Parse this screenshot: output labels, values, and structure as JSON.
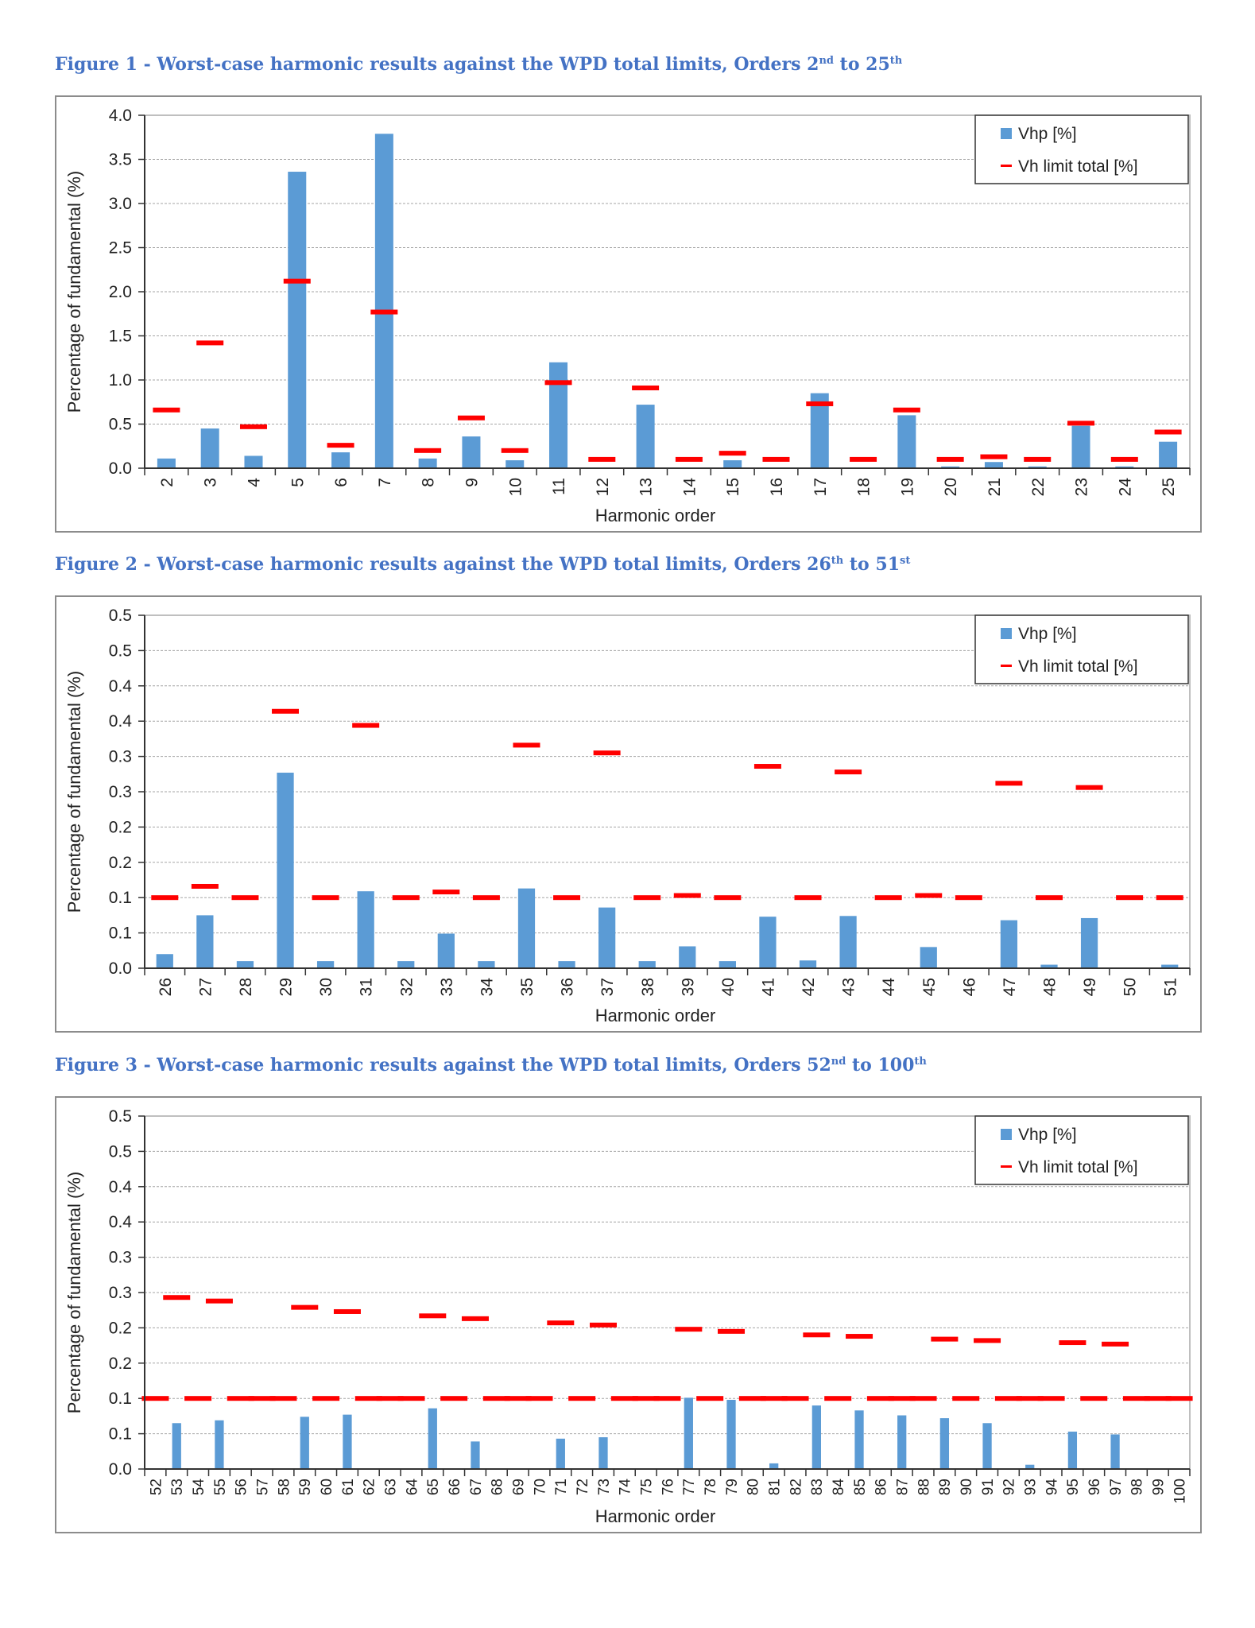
{
  "figures": [
    {
      "caption": {
        "text": "Figure 1 - Worst-case harmonic results against the WPD total limits, Orders 2",
        "sup1": "nd",
        "mid": " to 25",
        "sup2": "th"
      }
    },
    {
      "caption": {
        "text": "Figure 2 - Worst-case harmonic results against the WPD total limits, Orders 26",
        "sup1": "th",
        "mid": " to 51",
        "sup2": "st"
      }
    },
    {
      "caption": {
        "text": "Figure 3 - Worst-case harmonic results against the WPD total limits, Orders 52",
        "sup1": "nd",
        "mid": " to 100",
        "sup2": "th"
      }
    }
  ],
  "colors": {
    "bar": "#5b9bd5",
    "limit": "#ff0000",
    "caption": "#4472c4"
  },
  "chart_data": [
    {
      "type": "bar",
      "xlabel": "Harmonic order",
      "ylabel": "Percentage of fundamental (%)",
      "ylim": [
        0,
        4.0
      ],
      "yticks": [
        0,
        0.5,
        1.0,
        1.5,
        2.0,
        2.5,
        3.0,
        3.5,
        4.0
      ],
      "ytick_labels": [
        "0.0",
        "0.5",
        "1.0",
        "1.5",
        "2.0",
        "2.5",
        "3.0",
        "3.5",
        "4.0"
      ],
      "grid": true,
      "legend": "top-right",
      "categories": [
        "2",
        "3",
        "4",
        "5",
        "6",
        "7",
        "8",
        "9",
        "10",
        "11",
        "12",
        "13",
        "14",
        "15",
        "16",
        "17",
        "18",
        "19",
        "20",
        "21",
        "22",
        "23",
        "24",
        "25"
      ],
      "series": [
        {
          "name": "Vhp [%]",
          "kind": "bar",
          "values": [
            0.11,
            0.45,
            0.14,
            3.36,
            0.18,
            3.79,
            0.11,
            0.36,
            0.09,
            1.2,
            0,
            0.72,
            0,
            0.09,
            0,
            0.85,
            0,
            0.6,
            0.02,
            0.07,
            0.02,
            0.48,
            0.02,
            0.3
          ]
        },
        {
          "name": "Vh limit total [%]",
          "kind": "marker",
          "values": [
            0.66,
            1.42,
            0.47,
            2.12,
            0.26,
            1.77,
            0.2,
            0.57,
            0.2,
            0.97,
            0.1,
            0.91,
            0.1,
            0.17,
            0.1,
            0.73,
            0.1,
            0.66,
            0.1,
            0.13,
            0.1,
            0.51,
            0.1,
            0.41
          ]
        }
      ]
    },
    {
      "type": "bar",
      "xlabel": "Harmonic order",
      "ylabel": "Percentage of fundamental (%)",
      "ylim": [
        0,
        0.5
      ],
      "yticks": [
        0,
        0.05,
        0.1,
        0.15,
        0.2,
        0.25,
        0.3,
        0.35,
        0.4,
        0.45,
        0.5
      ],
      "ytick_labels": [
        "0.0",
        "0.1",
        "0.1",
        "0.2",
        "0.2",
        "0.3",
        "0.3",
        "0.4",
        "0.4",
        "0.5",
        "0.5"
      ],
      "grid": true,
      "legend": "top-right",
      "categories": [
        "26",
        "27",
        "28",
        "29",
        "30",
        "31",
        "32",
        "33",
        "34",
        "35",
        "36",
        "37",
        "38",
        "39",
        "40",
        "41",
        "42",
        "43",
        "44",
        "45",
        "46",
        "47",
        "48",
        "49",
        "50",
        "51"
      ],
      "series": [
        {
          "name": "Vhp [%]",
          "kind": "bar",
          "values": [
            0.02,
            0.075,
            0.01,
            0.277,
            0.01,
            0.109,
            0.01,
            0.049,
            0.01,
            0.113,
            0.01,
            0.086,
            0.01,
            0.031,
            0.01,
            0.073,
            0.011,
            0.074,
            0,
            0.03,
            0,
            0.068,
            0.005,
            0.071,
            0,
            0.005
          ]
        },
        {
          "name": "Vh limit total [%]",
          "kind": "marker",
          "values": [
            0.1,
            0.116,
            0.1,
            0.364,
            0.1,
            0.344,
            0.1,
            0.108,
            0.1,
            0.316,
            0.1,
            0.305,
            0.1,
            0.103,
            0.1,
            0.286,
            0.1,
            0.278,
            0.1,
            0.103,
            0.1,
            0.262,
            0.1,
            0.256,
            0.1,
            0.1
          ]
        }
      ]
    },
    {
      "type": "bar",
      "xlabel": "Harmonic order",
      "ylabel": "Percentage of fundamental (%)",
      "ylim": [
        0,
        0.5
      ],
      "yticks": [
        0,
        0.05,
        0.1,
        0.15,
        0.2,
        0.25,
        0.3,
        0.35,
        0.4,
        0.45,
        0.5
      ],
      "ytick_labels": [
        "0.0",
        "0.1",
        "0.1",
        "0.2",
        "0.2",
        "0.3",
        "0.3",
        "0.4",
        "0.4",
        "0.5",
        "0.5"
      ],
      "grid": true,
      "legend": "top-right",
      "categories": [
        "52",
        "53",
        "54",
        "55",
        "56",
        "57",
        "58",
        "59",
        "60",
        "61",
        "62",
        "63",
        "64",
        "65",
        "66",
        "67",
        "68",
        "69",
        "70",
        "71",
        "72",
        "73",
        "74",
        "75",
        "76",
        "77",
        "78",
        "79",
        "80",
        "81",
        "82",
        "83",
        "84",
        "85",
        "86",
        "87",
        "88",
        "89",
        "90",
        "91",
        "92",
        "93",
        "94",
        "95",
        "96",
        "97",
        "98",
        "99",
        "100"
      ],
      "series": [
        {
          "name": "Vhp [%]",
          "kind": "bar",
          "values": [
            0,
            0.065,
            0,
            0.069,
            0,
            0,
            0,
            0.074,
            0,
            0.077,
            0,
            0,
            0,
            0.086,
            0,
            0.039,
            0,
            0,
            0,
            0.043,
            0,
            0.045,
            0,
            0,
            0,
            0.101,
            0,
            0.098,
            0,
            0.008,
            0,
            0.09,
            0,
            0.083,
            0,
            0.076,
            0,
            0.072,
            0,
            0.065,
            0,
            0.006,
            0,
            0.053,
            0,
            0.049,
            0,
            0,
            0
          ]
        },
        {
          "name": "Vh limit total [%]",
          "kind": "marker",
          "values": [
            0.1,
            0.243,
            0.1,
            0.238,
            0.1,
            0.1,
            0.1,
            0.229,
            0.1,
            0.223,
            0.1,
            0.1,
            0.1,
            0.217,
            0.1,
            0.213,
            0.1,
            0.1,
            0.1,
            0.207,
            0.1,
            0.204,
            0.1,
            0.1,
            0.1,
            0.198,
            0.1,
            0.195,
            0.1,
            0.1,
            0.1,
            0.19,
            0.1,
            0.188,
            0.1,
            0.1,
            0.1,
            0.184,
            0.1,
            0.182,
            0.1,
            0.1,
            0.1,
            0.179,
            0.1,
            0.177,
            0.1,
            0.1,
            0.1
          ]
        }
      ]
    }
  ]
}
